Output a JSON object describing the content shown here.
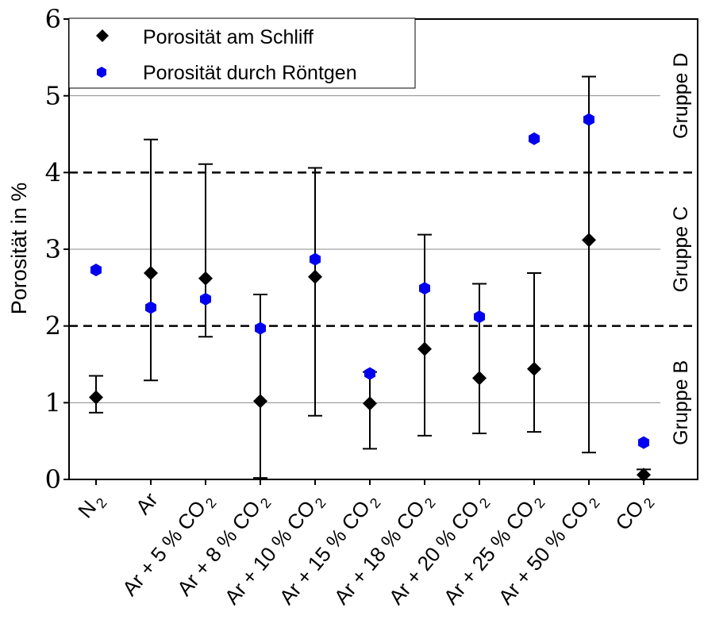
{
  "chart_data": {
    "type": "scatter",
    "title": "",
    "xlabel": "",
    "ylabel": "Porosität in %",
    "ylim": [
      0,
      6
    ],
    "yticks": [
      "0",
      "1",
      "2",
      "3",
      "4",
      "5",
      "6"
    ],
    "grid": "horizontal at 1, 3, 5",
    "categories": [
      {
        "base": "N",
        "sub": "2"
      },
      {
        "base": "Ar",
        "sub": ""
      },
      {
        "base": "Ar + 5 % CO",
        "sub": "2"
      },
      {
        "base": "Ar + 8 % CO",
        "sub": "2"
      },
      {
        "base": "Ar + 10 % CO",
        "sub": "2"
      },
      {
        "base": "Ar + 15 % CO",
        "sub": "2"
      },
      {
        "base": "Ar + 18 % CO",
        "sub": "2"
      },
      {
        "base": "Ar + 20 % CO",
        "sub": "2"
      },
      {
        "base": "Ar + 25 % CO",
        "sub": "2"
      },
      {
        "base": "Ar + 50 % CO",
        "sub": "2"
      },
      {
        "base": "CO",
        "sub": "2"
      }
    ],
    "series": [
      {
        "name": "Porosität am Schliff",
        "marker": "diamond",
        "color": "#000000",
        "values": [
          1.07,
          2.69,
          2.62,
          1.02,
          2.64,
          0.99,
          1.7,
          1.32,
          1.44,
          3.12,
          0.06
        ],
        "err_low": [
          0.87,
          1.29,
          1.86,
          0.02,
          0.83,
          0.4,
          0.57,
          0.6,
          0.62,
          0.35,
          0.0
        ],
        "err_high": [
          1.35,
          4.43,
          4.11,
          2.41,
          4.06,
          1.4,
          3.19,
          2.55,
          2.69,
          5.25,
          0.13
        ]
      },
      {
        "name": "Porosität durch Röntgen",
        "marker": "hexagon",
        "color": "#0000ee",
        "values": [
          2.73,
          2.24,
          2.35,
          1.97,
          2.87,
          1.38,
          2.49,
          2.12,
          4.44,
          4.69,
          0.48
        ]
      }
    ],
    "group_lines": [
      2,
      4
    ],
    "groups": [
      {
        "label": "Gruppe B",
        "range": [
          0,
          2
        ]
      },
      {
        "label": "Gruppe C",
        "range": [
          2,
          4
        ]
      },
      {
        "label": "Gruppe D",
        "range": [
          4,
          6
        ]
      }
    ],
    "legend": "top-left"
  }
}
